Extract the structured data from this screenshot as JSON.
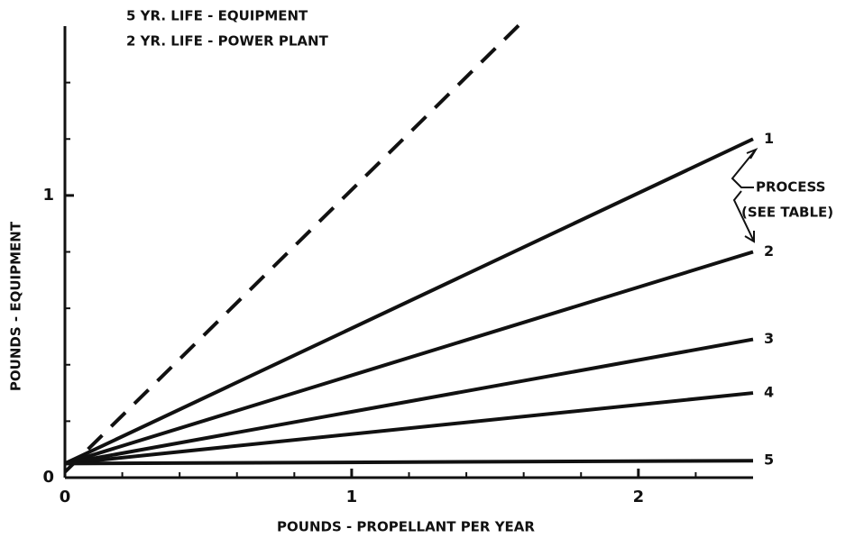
{
  "chart_data": {
    "type": "line",
    "title_lines": [
      "5 YR. LIFE - EQUIPMENT",
      "2 YR. LIFE - POWER PLANT"
    ],
    "x_label": "POUNDS - PROPELLANT PER YEAR",
    "y_label": "POUNDS - EQUIPMENT",
    "annotation_lines": [
      "PROCESS",
      "(SEE TABLE)"
    ],
    "xlim": [
      0,
      2.4
    ],
    "ylim": [
      0,
      1.6
    ],
    "xticks": [
      0,
      1,
      2
    ],
    "yticks": [
      0,
      1
    ],
    "xticks_minor": [
      0.2,
      0.4,
      0.6,
      0.8,
      1.2,
      1.4,
      1.6,
      1.8,
      2.2
    ],
    "yticks_minor": [
      0.2,
      0.4,
      0.6,
      0.8,
      1.2,
      1.4
    ],
    "series": [
      {
        "x": [
          0,
          1.6
        ],
        "values": [
          0.02,
          1.62
        ],
        "color": "#111",
        "dashed": true
      },
      {
        "name": "1",
        "x": [
          0,
          2.4
        ],
        "values": [
          0.05,
          1.2
        ],
        "color": "#111"
      },
      {
        "name": "2",
        "x": [
          0,
          2.4
        ],
        "values": [
          0.05,
          0.8
        ],
        "color": "#111"
      },
      {
        "name": "3",
        "x": [
          0,
          2.4
        ],
        "values": [
          0.05,
          0.49
        ],
        "color": "#111"
      },
      {
        "name": "4",
        "x": [
          0,
          2.4
        ],
        "values": [
          0.05,
          0.3
        ],
        "color": "#111"
      },
      {
        "name": "5",
        "x": [
          0,
          2.4
        ],
        "values": [
          0.05,
          0.06
        ],
        "color": "#111"
      }
    ]
  }
}
